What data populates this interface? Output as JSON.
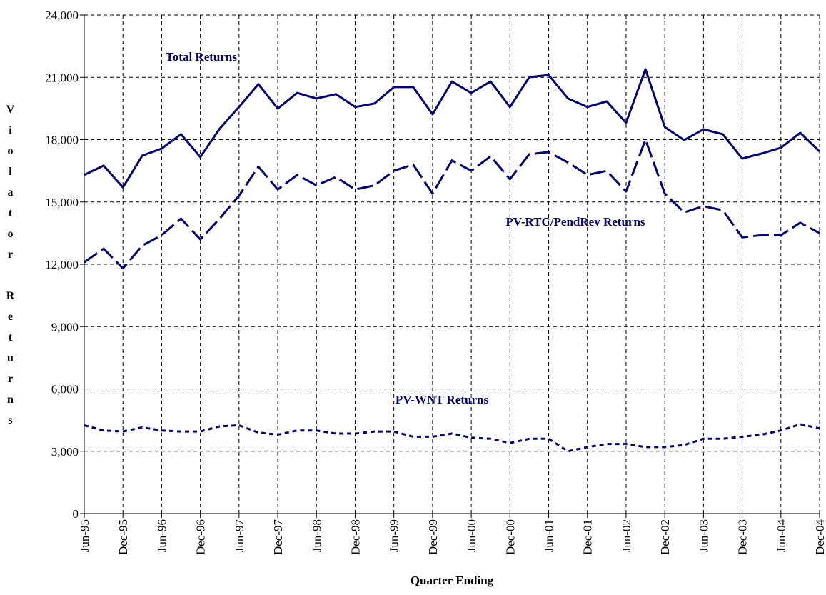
{
  "chart_data": {
    "type": "line",
    "x_label": "Quarter Ending",
    "y_label": "Violator Returns",
    "categories": [
      "Jun-95",
      null,
      "Dec-95",
      null,
      "Jun-96",
      null,
      "Dec-96",
      null,
      "Jun-97",
      null,
      "Dec-97",
      null,
      "Jun-98",
      null,
      "Dec-98",
      null,
      "Jun-99",
      null,
      "Dec-99",
      null,
      "Jun-00",
      null,
      "Dec-00",
      null,
      "Jun-01",
      null,
      "Dec-01",
      null,
      "Jun-02",
      null,
      "Dec-02",
      null,
      "Jun-03",
      null,
      "Dec-03",
      null,
      "Jun-04",
      null,
      "Dec-04"
    ],
    "series": [
      {
        "name": "Total Returns",
        "color": "#000080",
        "dash": "solid",
        "values": [
          16300,
          16750,
          15700,
          17230,
          17570,
          18260,
          17160,
          18530,
          19570,
          20670,
          19500,
          20250,
          19980,
          20190,
          19570,
          19740,
          20530,
          20530,
          19220,
          20800,
          20250,
          20800,
          19570,
          21010,
          21110,
          19980,
          19570,
          19840,
          18810,
          21390,
          18600,
          17980,
          18500,
          18260,
          17090,
          17330,
          17610,
          18330,
          17430
        ]
      },
      {
        "name": "PV-RTC/PendRev Returns",
        "color": "#000080",
        "dash": "dashed",
        "values": [
          12100,
          12750,
          11800,
          12900,
          13400,
          14200,
          13200,
          14200,
          15300,
          16700,
          15600,
          16300,
          15800,
          16200,
          15600,
          15800,
          16500,
          16800,
          15400,
          17000,
          16500,
          17200,
          16100,
          17300,
          17400,
          16900,
          16300,
          16500,
          15500,
          18000,
          15400,
          14500,
          14800,
          14600,
          13300,
          13400,
          13400,
          14000,
          13500
        ]
      },
      {
        "name": "PV-WNT Returns",
        "color": "#000080",
        "dash": "dotted",
        "values": [
          4250,
          4000,
          3950,
          4150,
          4000,
          3950,
          3950,
          4200,
          4250,
          3900,
          3800,
          4000,
          4000,
          3850,
          3850,
          3950,
          3950,
          3700,
          3700,
          3850,
          3650,
          3600,
          3400,
          3600,
          3600,
          3000,
          3200,
          3350,
          3350,
          3200,
          3200,
          3300,
          3600,
          3600,
          3700,
          3800,
          4000,
          4300,
          4100
        ]
      }
    ],
    "ylim": [
      0,
      24000
    ],
    "yticks": [
      0,
      {
        "value": 3000,
        "label": "3,000"
      },
      {
        "value": 6000,
        "label": "6,000"
      },
      {
        "value": 9000,
        "label": "9,000"
      },
      {
        "value": 12000,
        "label": "12,000"
      },
      {
        "value": 15000,
        "label": "15,000"
      },
      {
        "value": 18000,
        "label": "18,000"
      },
      {
        "value": 21000,
        "label": "21,000"
      },
      {
        "value": 24000,
        "label": "24,000"
      }
    ],
    "grid": true
  }
}
